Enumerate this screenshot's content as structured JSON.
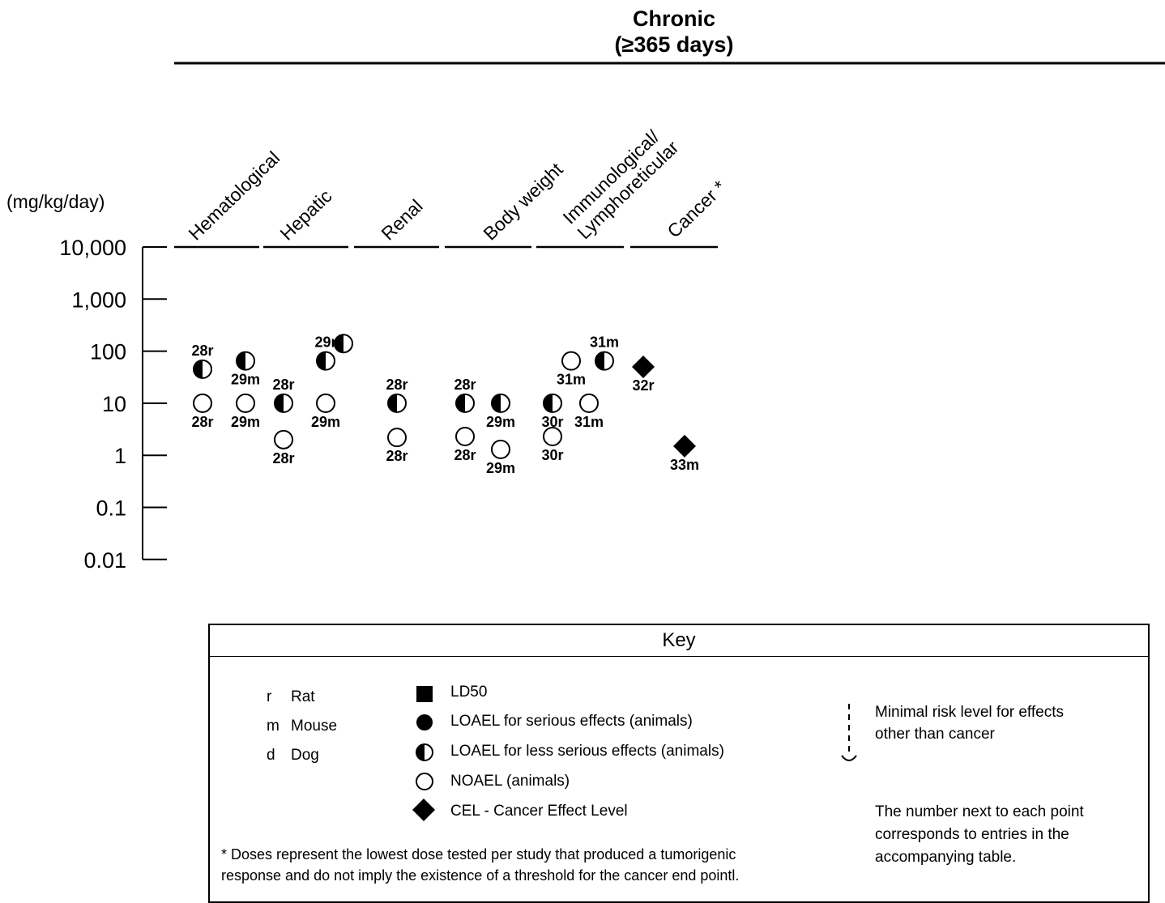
{
  "chart_data": {
    "type": "scatter",
    "title": "Chronic",
    "subtitle": "(≥365 days)",
    "ylabel": "(mg/kg/day)",
    "y_scale": "log",
    "ylim": [
      0.01,
      10000
    ],
    "y_ticks": [
      "10,000",
      "1,000",
      "100",
      "10",
      "1",
      "0.1",
      "0.01"
    ],
    "categories": [
      "Hematological",
      "Hepatic",
      "Renal",
      "Body weight",
      "Immunological/\nLymphoreticular",
      "Cancer *"
    ],
    "points": [
      {
        "category": "Hematological",
        "sub": 0,
        "y": 45,
        "marker": "loael-less",
        "label": "28r",
        "label_pos": "above"
      },
      {
        "category": "Hematological",
        "sub": 0,
        "y": 10,
        "marker": "noael",
        "label": "28r",
        "label_pos": "below"
      },
      {
        "category": "Hematological",
        "sub": 1,
        "y": 65,
        "marker": "loael-less",
        "label": "29m",
        "label_pos": "below"
      },
      {
        "category": "Hematological",
        "sub": 1,
        "y": 10,
        "marker": "noael",
        "label": "29m",
        "label_pos": "below"
      },
      {
        "category": "Hepatic",
        "sub": 0,
        "y": 10,
        "marker": "loael-less",
        "label": "28r",
        "label_pos": "above"
      },
      {
        "category": "Hepatic",
        "sub": 0,
        "y": 2,
        "marker": "noael",
        "label": "28r",
        "label_pos": "below"
      },
      {
        "category": "Hepatic",
        "sub": 1,
        "y": 65,
        "marker": "loael-less",
        "label": "29r",
        "label_pos": "above"
      },
      {
        "category": "Hepatic",
        "sub": 1,
        "y": 10,
        "marker": "noael",
        "label": "29m",
        "label_pos": "below"
      },
      {
        "category": "Hepatic",
        "sub": 2,
        "y": 140,
        "marker": "loael-less",
        "label": "",
        "label_pos": "none"
      },
      {
        "category": "Renal",
        "sub": 0,
        "y": 10,
        "marker": "loael-less",
        "label": "28r",
        "label_pos": "above"
      },
      {
        "category": "Renal",
        "sub": 0,
        "y": 2.2,
        "marker": "noael",
        "label": "28r",
        "label_pos": "below"
      },
      {
        "category": "Body weight",
        "sub": 0,
        "y": 10,
        "marker": "loael-less",
        "label": "28r",
        "label_pos": "above"
      },
      {
        "category": "Body weight",
        "sub": 0,
        "y": 2.3,
        "marker": "noael",
        "label": "28r",
        "label_pos": "below"
      },
      {
        "category": "Body weight",
        "sub": 1,
        "y": 10,
        "marker": "loael-less",
        "label": "29m",
        "label_pos": "below"
      },
      {
        "category": "Body weight",
        "sub": 1,
        "y": 1.3,
        "marker": "noael",
        "label": "29m",
        "label_pos": "below"
      },
      {
        "category": "Immunological/\nLymphoreticular",
        "sub": 0,
        "y": 10,
        "marker": "loael-less",
        "label": "30r",
        "label_pos": "below"
      },
      {
        "category": "Immunological/\nLymphoreticular",
        "sub": 0,
        "y": 2.3,
        "marker": "noael",
        "label": "30r",
        "label_pos": "below"
      },
      {
        "category": "Immunological/\nLymphoreticular",
        "sub": 1,
        "y": 65,
        "marker": "noael",
        "label": "31m",
        "label_pos": "below"
      },
      {
        "category": "Immunological/\nLymphoreticular",
        "sub": 2,
        "y": 10,
        "marker": "noael",
        "label": "31m",
        "label_pos": "below"
      },
      {
        "category": "Immunological/\nLymphoreticular",
        "sub": 3,
        "y": 65,
        "marker": "loael-less",
        "label": "31m",
        "label_pos": "above"
      },
      {
        "category": "Cancer *",
        "sub": 0,
        "y": 50,
        "marker": "cel",
        "label": "32r",
        "label_pos": "below"
      },
      {
        "category": "Cancer *",
        "sub": 1,
        "y": 1.5,
        "marker": "cel",
        "label": "33m",
        "label_pos": "below"
      }
    ]
  },
  "key": {
    "title": "Key",
    "species": [
      {
        "code": "r",
        "name": "Rat"
      },
      {
        "code": "m",
        "name": "Mouse"
      },
      {
        "code": "d",
        "name": "Dog"
      }
    ],
    "markers": [
      {
        "marker": "ld50",
        "label": "LD50"
      },
      {
        "marker": "loael-serious",
        "label": "LOAEL for serious effects (animals)"
      },
      {
        "marker": "loael-less",
        "label": "LOAEL for  less serious effects (animals)"
      },
      {
        "marker": "noael",
        "label": "NOAEL (animals)"
      },
      {
        "marker": "cel",
        "label": "CEL - Cancer Effect Level"
      }
    ],
    "mrl_line1": "Minimal risk level for effects",
    "mrl_line2": "other than cancer",
    "note_line1": "The number next to each point",
    "note_line2": "corresponds to entries in the",
    "note_line3": "accompanying table.",
    "footnote_line1": "* Doses represent the lowest dose tested per study that produced a tumorigenic",
    "footnote_line2": "response and do not imply the existence of a threshold for the cancer end pointl."
  }
}
